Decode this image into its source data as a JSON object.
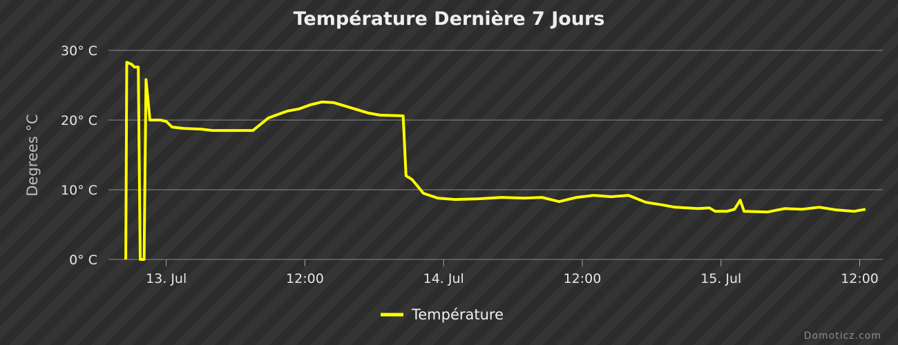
{
  "chart_data": {
    "type": "line",
    "title": "Température Dernière 7 Jours",
    "ylabel": "Degrees °C",
    "xlabel": "",
    "ylim": [
      0,
      30
    ],
    "yticks": [
      {
        "value": 0,
        "label": "0° C"
      },
      {
        "value": 10,
        "label": "10° C"
      },
      {
        "value": 20,
        "label": "20° C"
      },
      {
        "value": 30,
        "label": "30° C"
      }
    ],
    "xlim": [
      "2024-07-12T19:00",
      "2024-07-15T14:00"
    ],
    "xticks": [
      {
        "t": "2024-07-13T00:00",
        "label": "13. Jul"
      },
      {
        "t": "2024-07-13T12:00",
        "label": "12:00"
      },
      {
        "t": "2024-07-14T00:00",
        "label": "14. Jul"
      },
      {
        "t": "2024-07-14T12:00",
        "label": "12:00"
      },
      {
        "t": "2024-07-15T00:00",
        "label": "15. Jul"
      },
      {
        "t": "2024-07-15T12:00",
        "label": "12:00"
      }
    ],
    "grid": true,
    "legend_position": "bottom-center",
    "series": [
      {
        "name": "Température",
        "color": "#ffff00",
        "points": [
          [
            "2024-07-12T20:30",
            0
          ],
          [
            "2024-07-12T20:35",
            28.3
          ],
          [
            "2024-07-12T21:00",
            28.0
          ],
          [
            "2024-07-12T21:15",
            27.6
          ],
          [
            "2024-07-12T21:35",
            27.6
          ],
          [
            "2024-07-12T21:45",
            0
          ],
          [
            "2024-07-12T22:05",
            0
          ],
          [
            "2024-07-12T22:15",
            25.8
          ],
          [
            "2024-07-12T22:35",
            20.0
          ],
          [
            "2024-07-12T23:30",
            20.0
          ],
          [
            "2024-07-13T00:00",
            19.8
          ],
          [
            "2024-07-13T00:30",
            19.0
          ],
          [
            "2024-07-13T01:30",
            18.8
          ],
          [
            "2024-07-13T03:00",
            18.7
          ],
          [
            "2024-07-13T04:00",
            18.5
          ],
          [
            "2024-07-13T07:30",
            18.5
          ],
          [
            "2024-07-13T08:15",
            19.5
          ],
          [
            "2024-07-13T08:50",
            20.3
          ],
          [
            "2024-07-13T09:30",
            20.7
          ],
          [
            "2024-07-13T10:30",
            21.3
          ],
          [
            "2024-07-13T11:30",
            21.6
          ],
          [
            "2024-07-13T12:30",
            22.2
          ],
          [
            "2024-07-13T13:30",
            22.6
          ],
          [
            "2024-07-13T14:30",
            22.5
          ],
          [
            "2024-07-13T15:30",
            22.0
          ],
          [
            "2024-07-13T16:30",
            21.5
          ],
          [
            "2024-07-13T17:30",
            21.0
          ],
          [
            "2024-07-13T18:30",
            20.7
          ],
          [
            "2024-07-13T20:30",
            20.6
          ],
          [
            "2024-07-13T20:45",
            12.0
          ],
          [
            "2024-07-13T21:15",
            11.5
          ],
          [
            "2024-07-13T21:45",
            10.5
          ],
          [
            "2024-07-13T22:15",
            9.5
          ],
          [
            "2024-07-13T23:30",
            8.8
          ],
          [
            "2024-07-14T01:00",
            8.6
          ],
          [
            "2024-07-14T03:00",
            8.7
          ],
          [
            "2024-07-14T05:00",
            8.9
          ],
          [
            "2024-07-14T07:00",
            8.8
          ],
          [
            "2024-07-14T08:30",
            8.9
          ],
          [
            "2024-07-14T10:00",
            8.3
          ],
          [
            "2024-07-14T11:30",
            8.9
          ],
          [
            "2024-07-14T13:00",
            9.2
          ],
          [
            "2024-07-14T14:30",
            9.0
          ],
          [
            "2024-07-14T16:00",
            9.2
          ],
          [
            "2024-07-14T17:30",
            8.2
          ],
          [
            "2024-07-14T19:00",
            7.8
          ],
          [
            "2024-07-14T20:00",
            7.5
          ],
          [
            "2024-07-14T21:00",
            7.4
          ],
          [
            "2024-07-14T22:00",
            7.3
          ],
          [
            "2024-07-14T23:00",
            7.4
          ],
          [
            "2024-07-14T23:30",
            6.9
          ],
          [
            "2024-07-15T00:30",
            6.9
          ],
          [
            "2024-07-15T01:10",
            7.2
          ],
          [
            "2024-07-15T01:40",
            8.5
          ],
          [
            "2024-07-15T02:00",
            6.9
          ],
          [
            "2024-07-15T04:00",
            6.8
          ],
          [
            "2024-07-15T05:30",
            7.3
          ],
          [
            "2024-07-15T07:00",
            7.2
          ],
          [
            "2024-07-15T08:30",
            7.5
          ],
          [
            "2024-07-15T10:00",
            7.1
          ],
          [
            "2024-07-15T11:30",
            6.9
          ],
          [
            "2024-07-15T12:30",
            7.2
          ]
        ]
      }
    ]
  },
  "credit": "Domoticz.com"
}
